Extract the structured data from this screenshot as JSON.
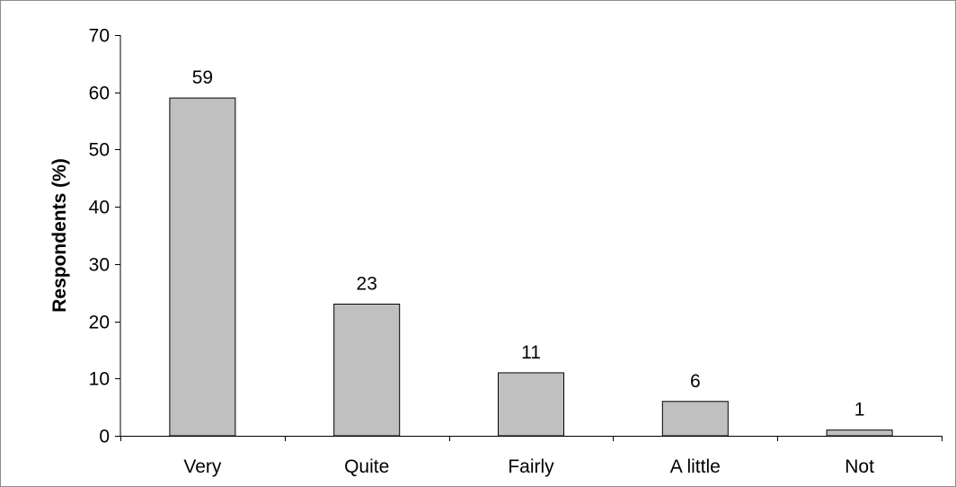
{
  "chart_data": {
    "type": "bar",
    "categories": [
      "Very",
      "Quite",
      "Fairly",
      "A little",
      "Not"
    ],
    "values": [
      59,
      23,
      11,
      6,
      1
    ],
    "data_labels": [
      "59",
      "23",
      "11",
      "6",
      "1"
    ],
    "title": "",
    "xlabel": "",
    "ylabel": "Respondents (%)",
    "ylim": [
      0,
      70
    ],
    "yticks": [
      0,
      10,
      20,
      30,
      40,
      50,
      60,
      70
    ],
    "grid": false,
    "legend": "none",
    "bar_color": "#c0c0c0",
    "bar_edge_color": "#000000"
  }
}
